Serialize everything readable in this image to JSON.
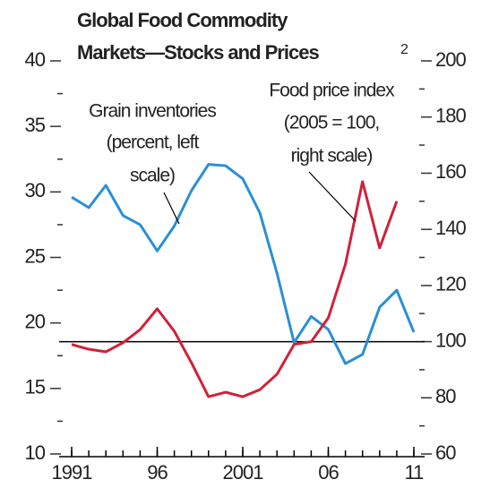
{
  "chart_data": {
    "type": "line",
    "title": [
      "Global Food Commodity",
      "Markets—Stocks and Prices"
    ],
    "title_note": "2",
    "x": [
      1991,
      1992,
      1993,
      1994,
      1995,
      1996,
      1997,
      1998,
      1999,
      2000,
      2001,
      2002,
      2003,
      2004,
      2005,
      2006,
      2007,
      2008,
      2009,
      2010,
      2011
    ],
    "xlim": [
      1991,
      2011
    ],
    "xticks": [
      1991,
      {
        "value": 1996,
        "label": "96"
      },
      2001,
      {
        "value": 2006,
        "label": "06"
      },
      {
        "value": 2011,
        "label": "11"
      }
    ],
    "ylim": [
      10,
      40
    ],
    "yticks": [
      10,
      15,
      20,
      25,
      30,
      35,
      40
    ],
    "y2lim": [
      60,
      200
    ],
    "y2ticks": [
      60,
      80,
      100,
      120,
      140,
      160,
      180,
      200
    ],
    "series": [
      {
        "name": [
          "Grain inventories",
          "(percent, left",
          "scale)"
        ],
        "color": "#2a8fd6",
        "axis": "y",
        "values": [
          29.6,
          28.8,
          30.5,
          28.2,
          27.5,
          25.5,
          27.4,
          30.1,
          32.1,
          32,
          31,
          28.4,
          23.8,
          18.5,
          20.5,
          19.5,
          16.9,
          17.6,
          21.2,
          22.5,
          19.3
        ]
      },
      {
        "name": [
          "Food price index",
          "(2005 = 100,",
          "right scale)"
        ],
        "color": "#d0213a",
        "axis": "y2",
        "values": [
          99,
          97.3,
          96.4,
          99.6,
          104.3,
          111.7,
          103.7,
          92.5,
          80.4,
          82,
          80.4,
          82.9,
          88.4,
          99,
          100,
          108.5,
          127.6,
          157,
          133.4,
          150,
          null
        ]
      }
    ],
    "hline": {
      "value": 100,
      "axis": "y2",
      "color": "#000000"
    }
  }
}
